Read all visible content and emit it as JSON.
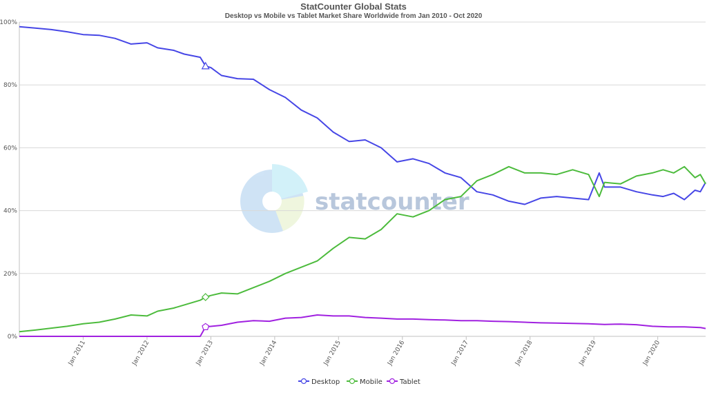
{
  "header": {
    "title": "StatCounter Global Stats",
    "subtitle": "Desktop vs Mobile vs Tablet Market Share Worldwide from Jan 2010 - Oct 2020"
  },
  "watermark": {
    "text": "statcounter"
  },
  "chart_data": {
    "type": "line",
    "title": "StatCounter Global Stats",
    "subtitle": "Desktop vs Mobile vs Tablet Market Share Worldwide from Jan 2010 - Oct 2020",
    "xlabel": "",
    "ylabel": "",
    "ylim": [
      0,
      100
    ],
    "y_ticks": [
      "0%",
      "20%",
      "40%",
      "60%",
      "80%",
      "100%"
    ],
    "x_tick_labels": [
      "Jan 2011",
      "Jan 2012",
      "Jan 2013",
      "Jan 2014",
      "Jan 2015",
      "Jan 2016",
      "Jan 2017",
      "Jan 2018",
      "Jan 2019",
      "Jan 2020"
    ],
    "x_range": [
      "Jan 2010",
      "Oct 2020"
    ],
    "grid": true,
    "legend_position": "bottom-center",
    "series": [
      {
        "name": "Desktop",
        "color": "#4646e6",
        "points": [
          [
            "2010-01",
            98.5
          ],
          [
            "2010-04",
            98.1
          ],
          [
            "2010-07",
            97.6
          ],
          [
            "2010-10",
            96.9
          ],
          [
            "2011-01",
            96.0
          ],
          [
            "2011-04",
            95.8
          ],
          [
            "2011-07",
            94.8
          ],
          [
            "2011-10",
            93.0
          ],
          [
            "2012-01",
            93.4
          ],
          [
            "2012-03",
            91.8
          ],
          [
            "2012-06",
            91.0
          ],
          [
            "2012-08",
            89.8
          ],
          [
            "2012-11",
            88.8
          ],
          [
            "2012-12",
            86.0
          ],
          [
            "2013-01",
            85.5
          ],
          [
            "2013-03",
            83.0
          ],
          [
            "2013-06",
            82.0
          ],
          [
            "2013-09",
            81.8
          ],
          [
            "2013-12",
            78.5
          ],
          [
            "2014-03",
            76.0
          ],
          [
            "2014-06",
            72.0
          ],
          [
            "2014-09",
            69.5
          ],
          [
            "2014-12",
            65.0
          ],
          [
            "2015-03",
            62.0
          ],
          [
            "2015-06",
            62.5
          ],
          [
            "2015-09",
            60.0
          ],
          [
            "2015-12",
            55.5
          ],
          [
            "2016-03",
            56.5
          ],
          [
            "2016-06",
            55.0
          ],
          [
            "2016-09",
            52.0
          ],
          [
            "2016-12",
            50.5
          ],
          [
            "2017-03",
            46.0
          ],
          [
            "2017-06",
            45.0
          ],
          [
            "2017-09",
            43.0
          ],
          [
            "2017-12",
            42.0
          ],
          [
            "2018-03",
            44.0
          ],
          [
            "2018-06",
            44.5
          ],
          [
            "2018-09",
            44.0
          ],
          [
            "2018-12",
            43.5
          ],
          [
            "2019-02",
            52.0
          ],
          [
            "2019-03",
            47.5
          ],
          [
            "2019-06",
            47.5
          ],
          [
            "2019-09",
            46.0
          ],
          [
            "2019-12",
            45.0
          ],
          [
            "2020-02",
            44.5
          ],
          [
            "2020-04",
            45.5
          ],
          [
            "2020-06",
            43.5
          ],
          [
            "2020-08",
            46.5
          ],
          [
            "2020-09",
            46.0
          ],
          [
            "2020-10",
            49.0
          ]
        ]
      },
      {
        "name": "Mobile",
        "color": "#4cbb3c",
        "points": [
          [
            "2010-01",
            1.5
          ],
          [
            "2010-04",
            2.0
          ],
          [
            "2010-07",
            2.6
          ],
          [
            "2010-10",
            3.2
          ],
          [
            "2011-01",
            4.0
          ],
          [
            "2011-04",
            4.5
          ],
          [
            "2011-07",
            5.5
          ],
          [
            "2011-10",
            6.8
          ],
          [
            "2012-01",
            6.5
          ],
          [
            "2012-03",
            8.0
          ],
          [
            "2012-06",
            9.0
          ],
          [
            "2012-08",
            10.0
          ],
          [
            "2012-11",
            11.5
          ],
          [
            "2012-12",
            12.5
          ],
          [
            "2013-01",
            13.0
          ],
          [
            "2013-03",
            13.8
          ],
          [
            "2013-06",
            13.5
          ],
          [
            "2013-09",
            15.5
          ],
          [
            "2013-12",
            17.5
          ],
          [
            "2014-03",
            20.0
          ],
          [
            "2014-06",
            22.0
          ],
          [
            "2014-09",
            24.0
          ],
          [
            "2014-12",
            28.0
          ],
          [
            "2015-03",
            31.5
          ],
          [
            "2015-06",
            31.0
          ],
          [
            "2015-09",
            34.0
          ],
          [
            "2015-12",
            39.0
          ],
          [
            "2016-03",
            38.0
          ],
          [
            "2016-06",
            40.0
          ],
          [
            "2016-09",
            43.5
          ],
          [
            "2016-12",
            44.5
          ],
          [
            "2017-03",
            49.5
          ],
          [
            "2017-06",
            51.5
          ],
          [
            "2017-09",
            54.0
          ],
          [
            "2017-12",
            52.0
          ],
          [
            "2018-03",
            52.0
          ],
          [
            "2018-06",
            51.5
          ],
          [
            "2018-09",
            53.0
          ],
          [
            "2018-12",
            51.5
          ],
          [
            "2019-02",
            44.5
          ],
          [
            "2019-03",
            49.0
          ],
          [
            "2019-06",
            48.5
          ],
          [
            "2019-09",
            51.0
          ],
          [
            "2019-12",
            52.0
          ],
          [
            "2020-02",
            53.0
          ],
          [
            "2020-04",
            52.0
          ],
          [
            "2020-06",
            54.0
          ],
          [
            "2020-08",
            50.5
          ],
          [
            "2020-09",
            51.5
          ],
          [
            "2020-10",
            48.5
          ]
        ]
      },
      {
        "name": "Tablet",
        "color": "#a020e0",
        "points": [
          [
            "2010-01",
            0.0
          ],
          [
            "2010-06",
            0.0
          ],
          [
            "2011-01",
            0.0
          ],
          [
            "2011-06",
            0.0
          ],
          [
            "2012-01",
            0.0
          ],
          [
            "2012-06",
            0.0
          ],
          [
            "2012-11",
            0.0
          ],
          [
            "2012-12",
            3.0
          ],
          [
            "2013-03",
            3.5
          ],
          [
            "2013-06",
            4.5
          ],
          [
            "2013-09",
            5.0
          ],
          [
            "2013-12",
            4.8
          ],
          [
            "2014-03",
            5.8
          ],
          [
            "2014-06",
            6.0
          ],
          [
            "2014-09",
            6.8
          ],
          [
            "2014-12",
            6.5
          ],
          [
            "2015-03",
            6.5
          ],
          [
            "2015-06",
            6.0
          ],
          [
            "2015-09",
            5.8
          ],
          [
            "2015-12",
            5.5
          ],
          [
            "2016-03",
            5.5
          ],
          [
            "2016-06",
            5.3
          ],
          [
            "2016-09",
            5.2
          ],
          [
            "2016-12",
            5.0
          ],
          [
            "2017-03",
            5.0
          ],
          [
            "2017-06",
            4.8
          ],
          [
            "2017-09",
            4.7
          ],
          [
            "2017-12",
            4.5
          ],
          [
            "2018-03",
            4.3
          ],
          [
            "2018-06",
            4.2
          ],
          [
            "2018-09",
            4.1
          ],
          [
            "2018-12",
            4.0
          ],
          [
            "2019-03",
            3.8
          ],
          [
            "2019-06",
            3.9
          ],
          [
            "2019-09",
            3.7
          ],
          [
            "2019-12",
            3.2
          ],
          [
            "2020-03",
            3.0
          ],
          [
            "2020-06",
            3.0
          ],
          [
            "2020-09",
            2.8
          ],
          [
            "2020-10",
            2.5
          ]
        ]
      }
    ],
    "markers": [
      {
        "series": "Desktop",
        "x": "2012-12",
        "shape": "triangle"
      },
      {
        "series": "Mobile",
        "x": "2012-12",
        "shape": "diamond"
      },
      {
        "series": "Tablet",
        "x": "2012-12",
        "shape": "pentagon"
      }
    ]
  }
}
